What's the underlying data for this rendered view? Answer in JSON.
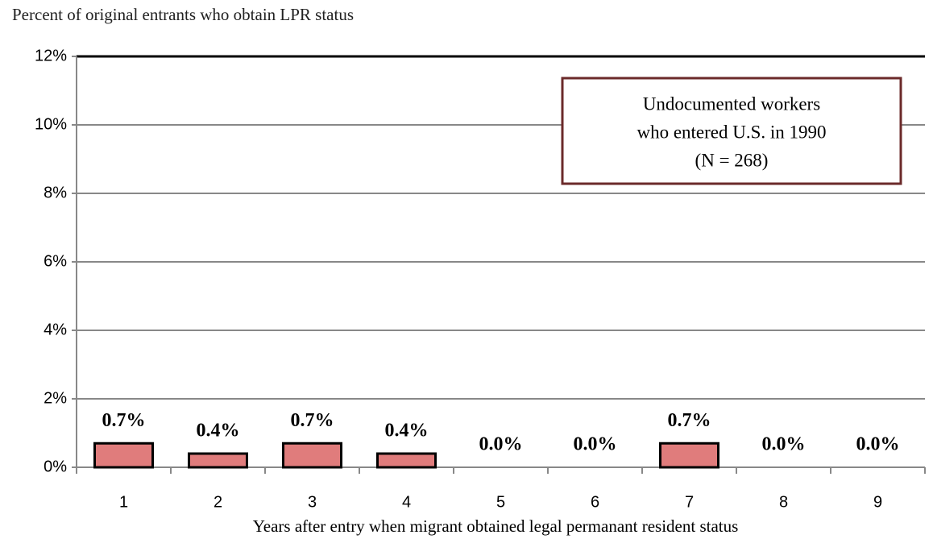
{
  "chart_data": {
    "type": "bar",
    "title": "Percent of original entrants who obtain LPR status",
    "x_label": "Years after entry when migrant obtained legal permanant resident status",
    "annotation": [
      "Undocumented workers",
      "who entered U.S. in 1990",
      "(N = 268)"
    ],
    "categories": [
      "1",
      "2",
      "3",
      "4",
      "5",
      "6",
      "7",
      "8",
      "9"
    ],
    "values": [
      0.7,
      0.4,
      0.7,
      0.4,
      0,
      0,
      0.7,
      0,
      0
    ],
    "value_labels": [
      "0.7%",
      "0.4%",
      "0.7%",
      "0.4%",
      "0.0%",
      "0.0%",
      "0.7%",
      "0.0%",
      "0.0%"
    ],
    "color": "#e07c7c",
    "ylim": [
      0,
      12
    ],
    "yticks": [
      {
        "value": 0,
        "label": "0%"
      },
      {
        "value": 2,
        "label": "2%"
      },
      {
        "value": 4,
        "label": "4%"
      },
      {
        "value": 6,
        "label": "6%"
      },
      {
        "value": 8,
        "label": "8%"
      },
      {
        "value": 10,
        "label": "10%"
      },
      {
        "value": 12,
        "label": "12%"
      }
    ],
    "grid": true
  }
}
